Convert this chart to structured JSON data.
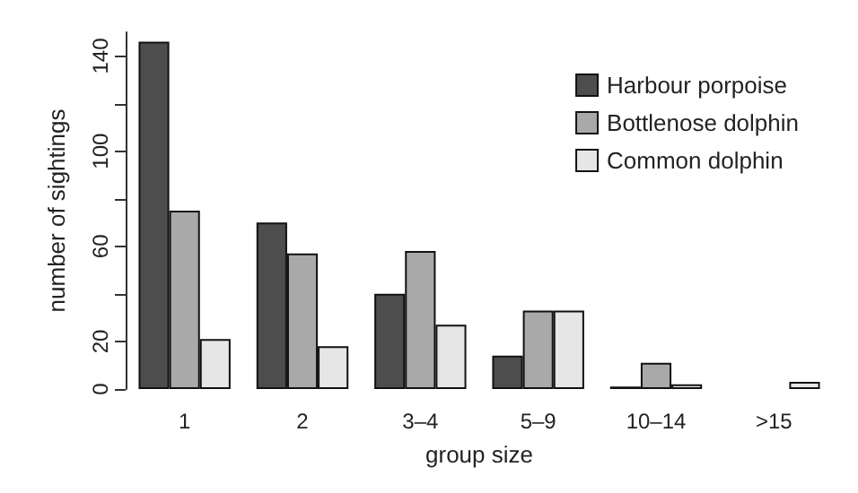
{
  "chart_data": {
    "type": "bar",
    "xlabel": "group size",
    "ylabel": "number of sightings",
    "categories": [
      "1",
      "2",
      "3–4",
      "5–9",
      "10–14",
      ">15"
    ],
    "series": [
      {
        "name": "Harbour porpoise",
        "color": "#4d4d4d",
        "values": [
          146,
          70,
          40,
          14,
          1,
          0
        ]
      },
      {
        "name": "Bottlenose dolphin",
        "color": "#a9a9a9",
        "values": [
          75,
          57,
          58,
          33,
          11,
          0
        ]
      },
      {
        "name": "Common dolphin",
        "color": "#e6e6e6",
        "values": [
          21,
          18,
          27,
          33,
          2,
          3
        ]
      }
    ],
    "ylim": [
      0,
      150
    ],
    "yticks": [
      0,
      20,
      {
        "value": 40,
        "label": null
      },
      60,
      {
        "value": 80,
        "label": null
      },
      100,
      {
        "value": 120,
        "label": null
      },
      140
    ],
    "grid": false,
    "legend": "top right"
  }
}
